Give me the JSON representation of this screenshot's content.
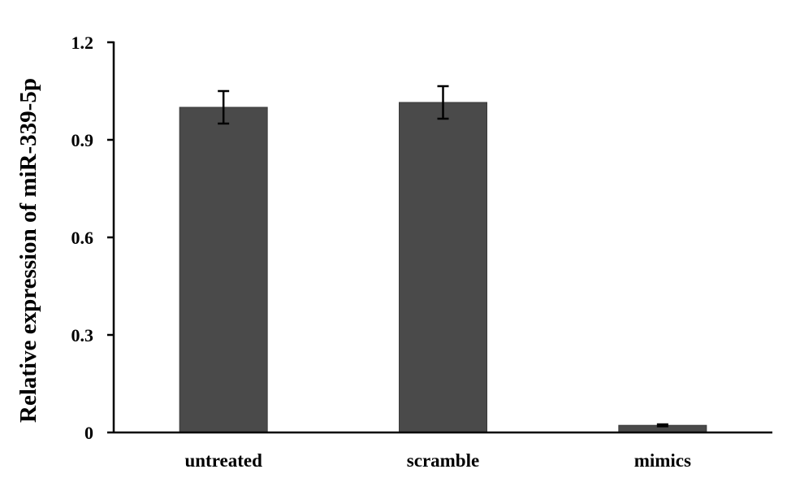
{
  "chart_data": {
    "type": "bar",
    "title": "",
    "xlabel": "",
    "ylabel": "Relative expression of miR-339-5p",
    "categories": [
      "untreated",
      "scramble",
      "mimics"
    ],
    "values": [
      1.0,
      1.015,
      0.022
    ],
    "errors": [
      0.05,
      0.05,
      0.003
    ],
    "ylim": [
      0,
      1.2
    ],
    "yticks": [
      0,
      0.3,
      0.6,
      0.9,
      1.2
    ],
    "ytick_labels": [
      "0",
      "0.3",
      "0.6",
      "0.9",
      "1.2"
    ],
    "grid": false,
    "legend": "none",
    "bar_color": "#4a4a4a"
  }
}
